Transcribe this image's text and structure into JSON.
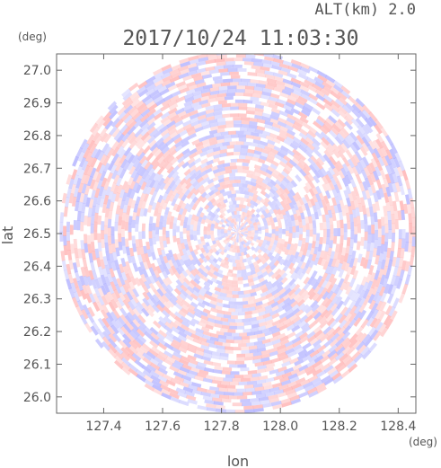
{
  "chart_data": {
    "type": "heatmap",
    "title": "2017/10/24 11:03:30",
    "altitude_label": "ALT(km) 2.0",
    "xlabel": "lon",
    "ylabel": "lat",
    "x_unit": "(deg)",
    "y_unit": "(deg)",
    "xlim": [
      127.24,
      128.46
    ],
    "ylim": [
      25.95,
      27.05
    ],
    "x_ticks": [
      "127.4",
      "127.6",
      "127.8",
      "128.0",
      "128.2",
      "128.4"
    ],
    "y_ticks": [
      "26.0",
      "26.1",
      "26.2",
      "26.3",
      "26.4",
      "26.5",
      "26.6",
      "26.7",
      "26.8",
      "26.9",
      "27.0"
    ],
    "radar_center": {
      "lon": 127.855,
      "lat": 26.505
    },
    "radar_range_deg": {
      "lon": 0.605,
      "lat": 0.555
    },
    "colors": {
      "positive": "#ff9999",
      "negative": "#9999ff",
      "axis": "#666666",
      "text": "#555555"
    }
  }
}
